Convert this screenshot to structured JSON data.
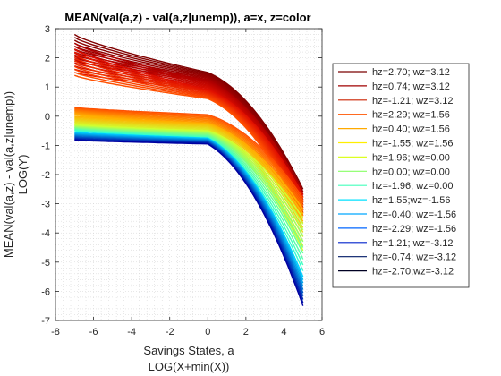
{
  "chart_data": {
    "type": "line",
    "title": "MEAN(val(a,z) - val(a,z|unemp)), a=x, z=color",
    "xlabel": [
      "Savings States, a",
      "LOG(X+min(X))"
    ],
    "ylabel": [
      "MEAN(val(a,z) - val(a,z|unemp))",
      "LOG(Y)"
    ],
    "xlim": [
      -8,
      6
    ],
    "ylim": [
      -7,
      3
    ],
    "xticks": [
      "-8",
      "-6",
      "-4",
      "-2",
      "0",
      "2",
      "4",
      "6"
    ],
    "yticks": [
      "3",
      "2",
      "1",
      "0",
      "-1",
      "-2",
      "-3",
      "-4",
      "-5",
      "-6",
      "-7"
    ],
    "grid": "minor dotted",
    "legend_position": "right",
    "x_range": [
      -7,
      5
    ],
    "curve_families": 7,
    "curves_per_family": 10,
    "series": [
      {
        "name": "hz=2.70; wz=3.12",
        "color": "#7a0000"
      },
      {
        "name": "hz=0.74; wz=3.12",
        "color": "#a00000"
      },
      {
        "name": "hz=-1.21; wz=3.12",
        "color": "#cc2200"
      },
      {
        "name": "hz=2.29; wz=1.56",
        "color": "#ff5500"
      },
      {
        "name": "hz=0.40; wz=1.56",
        "color": "#ffaa00"
      },
      {
        "name": "hz=-1.55; wz=1.56",
        "color": "#ffee00"
      },
      {
        "name": "hz=1.96; wz=0.00",
        "color": "#ddff22"
      },
      {
        "name": "hz=0.00; wz=0.00",
        "color": "#88ff66"
      },
      {
        "name": "hz=-1.96; wz=0.00",
        "color": "#44ffbb"
      },
      {
        "name": "hz=1.55;wz=-1.56",
        "color": "#00e0ff"
      },
      {
        "name": "hz=-0.40; wz=-1.56",
        "color": "#00a8ff"
      },
      {
        "name": "hz=-2.29; wz=-1.56",
        "color": "#0066ff"
      },
      {
        "name": "hz=1.21; wz=-3.12",
        "color": "#0022cc"
      },
      {
        "name": "hz=-0.74; wz=-3.12",
        "color": "#001a66"
      },
      {
        "name": "hz=-2.70;wz=-3.12",
        "color": "#000022"
      }
    ],
    "families": [
      {
        "start": [
          2.8,
          1.9
        ],
        "knee": [
          1.5,
          1.2
        ],
        "end": [
          -2.5,
          -3.3
        ],
        "colors": [
          "#7f0000",
          "#b00000"
        ]
      },
      {
        "start": [
          2.5,
          1.5
        ],
        "knee": [
          1.2,
          0.9
        ],
        "end": [
          -2.6,
          -3.4
        ],
        "colors": [
          "#b00000",
          "#e01000"
        ]
      },
      {
        "start": [
          2.3,
          1.4
        ],
        "knee": [
          0.9,
          0.6
        ],
        "end": [
          -2.7,
          -3.5
        ],
        "colors": [
          "#e01000",
          "#ff5000"
        ]
      },
      {
        "start": [
          0.3,
          0.05
        ],
        "knee": [
          0.05,
          -0.3
        ],
        "end": [
          -2.8,
          -3.6
        ],
        "colors": [
          "#ff5000",
          "#ffb000"
        ]
      },
      {
        "start": [
          0.0,
          -0.3
        ],
        "knee": [
          -0.25,
          -0.55
        ],
        "end": [
          -3.2,
          -4.6
        ],
        "colors": [
          "#ffb000",
          "#d0ff30"
        ]
      },
      {
        "start": [
          -0.3,
          -0.5
        ],
        "knee": [
          -0.5,
          -0.75
        ],
        "end": [
          -3.5,
          -5.3
        ],
        "colors": [
          "#d0ff30",
          "#30ffd0"
        ]
      },
      {
        "start": [
          -0.55,
          -0.82
        ],
        "knee": [
          -0.75,
          -0.95
        ],
        "end": [
          -5.5,
          -6.5
        ],
        "colors": [
          "#00d0ff",
          "#0000a0"
        ]
      }
    ]
  }
}
